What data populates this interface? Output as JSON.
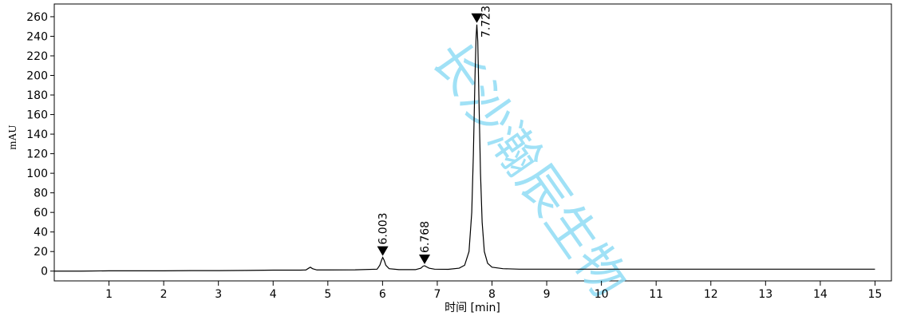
{
  "chart_data": {
    "type": "line",
    "x_label": "时间 [min]",
    "y_label": "mAU",
    "watermark": "长沙瀚辰生物",
    "x": [
      0,
      0.5,
      1,
      1.5,
      2,
      2.5,
      3,
      3.5,
      4,
      4.5,
      4.6,
      4.65,
      4.68,
      4.72,
      4.8,
      5,
      5.5,
      5.9,
      5.95,
      5.98,
      6.003,
      6.03,
      6.06,
      6.12,
      6.3,
      6.6,
      6.7,
      6.74,
      6.768,
      6.8,
      6.85,
      6.95,
      7.2,
      7.4,
      7.5,
      7.58,
      7.63,
      7.66,
      7.69,
      7.71,
      7.723,
      7.74,
      7.76,
      7.79,
      7.82,
      7.86,
      7.92,
      8.0,
      8.2,
      8.5,
      9,
      10,
      11,
      12,
      13,
      14,
      15
    ],
    "values": [
      0,
      0,
      0.3,
      0.3,
      0.3,
      0.5,
      0.5,
      0.7,
      1,
      1,
      1.2,
      3,
      4,
      2.5,
      1.2,
      1.2,
      1.3,
      2,
      6,
      11,
      14,
      11,
      6,
      2.5,
      1.5,
      1.5,
      3,
      5,
      5.5,
      4.5,
      3,
      2,
      1.8,
      3,
      6,
      20,
      60,
      120,
      200,
      240,
      252,
      235,
      180,
      100,
      50,
      20,
      8,
      4,
      2.5,
      2,
      2,
      2,
      2,
      2,
      2,
      2,
      2
    ],
    "color": "#000000",
    "peaks": [
      {
        "rt": 6.003,
        "height": 14
      },
      {
        "rt": 6.768,
        "height": 5.5
      },
      {
        "rt": 7.723,
        "height": 252
      }
    ],
    "xlim": [
      0,
      15.3
    ],
    "ylim": [
      -10,
      273
    ],
    "xticks": [
      1,
      2,
      3,
      4,
      5,
      6,
      7,
      8,
      9,
      10,
      11,
      12,
      13,
      14,
      15
    ],
    "yticks": [
      0,
      20,
      40,
      60,
      80,
      100,
      120,
      140,
      160,
      180,
      200,
      220,
      240,
      260
    ]
  }
}
